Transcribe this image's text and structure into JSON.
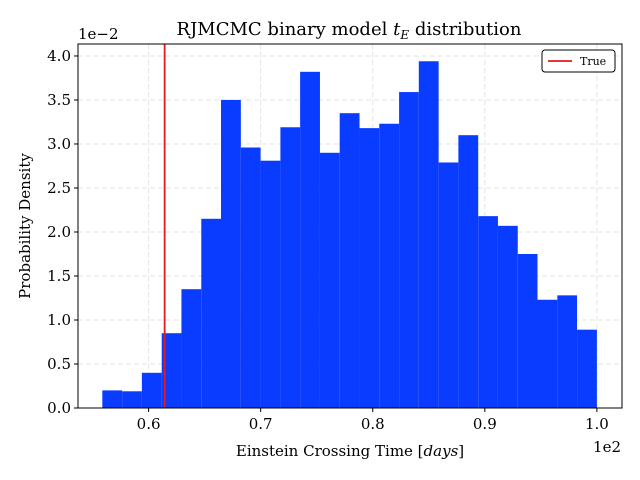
{
  "chart_data": {
    "type": "histogram",
    "title": [
      "RJMCMC binary model ",
      "t",
      "E",
      " distribution"
    ],
    "xlabel": [
      "Einstein Crossing Time [",
      "days",
      "]"
    ],
    "ylabel": "Probability Density",
    "x_offset_label": "1e2",
    "y_offset_label": "1e−2",
    "bins": [
      0.5587,
      0.5764,
      0.594,
      0.6117,
      0.6293,
      0.647,
      0.6646,
      0.6823,
      0.6999,
      0.7176,
      0.7352,
      0.7529,
      0.7705,
      0.7882,
      0.8058,
      0.8235,
      0.8411,
      0.8588,
      0.8764,
      0.8941,
      0.9117,
      0.9294,
      0.947,
      0.9647,
      0.9823,
      1.0
    ],
    "values": [
      0.2,
      0.19,
      0.4,
      0.85,
      1.35,
      2.15,
      3.5,
      2.96,
      2.81,
      3.19,
      3.82,
      2.9,
      3.35,
      3.18,
      3.23,
      3.59,
      3.94,
      2.79,
      3.1,
      2.18,
      2.07,
      1.75,
      1.23,
      1.28,
      0.89
    ],
    "color": "#0a3cff",
    "lines": [
      {
        "name": "True",
        "x": 0.6143,
        "color": "#e8191b"
      }
    ],
    "xlim": [
      0.537,
      1.0224
    ],
    "ylim": [
      0,
      4.136
    ],
    "xticks": [
      0.6,
      0.7,
      0.8,
      0.9,
      {
        "value": 1.0,
        "label": "1.0"
      }
    ],
    "yticks": [
      {
        "value": 0,
        "label": "0.0"
      },
      0.5,
      {
        "value": 1,
        "label": "1.0"
      },
      1.5,
      {
        "value": 2,
        "label": "2.0"
      },
      2.5,
      {
        "value": 3,
        "label": "3.0"
      },
      3.5,
      {
        "value": 4,
        "label": "4.0"
      }
    ],
    "grid": true,
    "legend_loc": "upper right"
  }
}
